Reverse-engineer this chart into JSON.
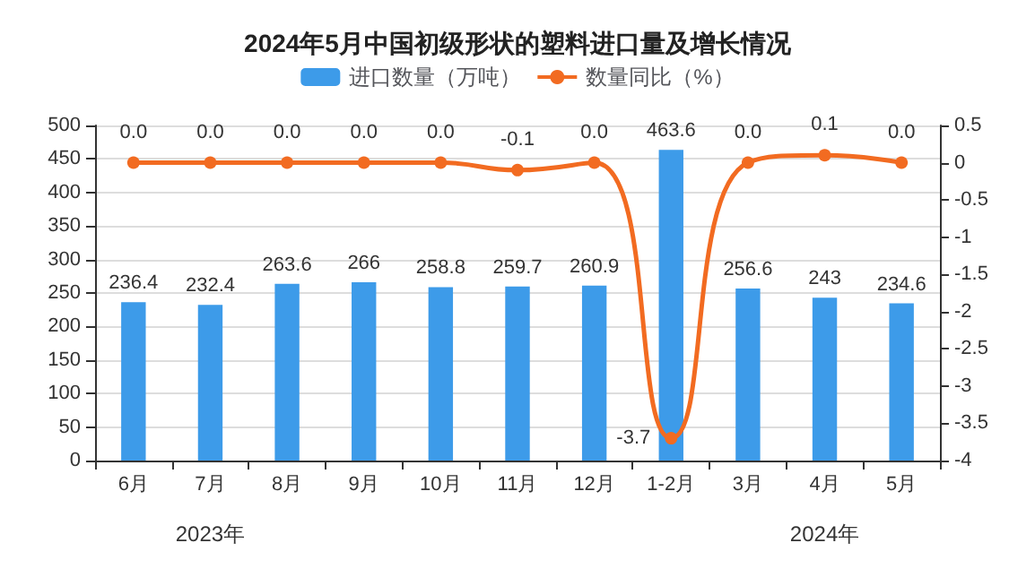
{
  "chart_data": {
    "type": "bar",
    "title": "2024年5月中国初级形状的塑料进口量及增长情况",
    "categories": [
      "6月",
      "7月",
      "8月",
      "9月",
      "10月",
      "11月",
      "12月",
      "1-2月",
      "3月",
      "4月",
      "5月"
    ],
    "series": [
      {
        "name": "进口数量（万吨）",
        "color": "#3d9be9",
        "values": [
          236.4,
          232.4,
          263.6,
          266,
          258.8,
          259.7,
          260.9,
          463.6,
          256.6,
          243,
          234.6
        ]
      },
      {
        "name": "数量同比（%）",
        "type": "line",
        "axis": "y2",
        "color": "#f26b21",
        "marker": "circle",
        "values": [
          0.0,
          0.0,
          0.0,
          0.0,
          0.0,
          -0.1,
          0.0,
          -3.7,
          0.0,
          0.1,
          0.0
        ],
        "value_labels": [
          "0.0",
          "0.0",
          "0.0",
          "0.0",
          "0.0",
          "-0.1",
          "0.0",
          "-3.7",
          "0.0",
          "0.1",
          "0.0"
        ]
      }
    ],
    "ylim": [
      0,
      500
    ],
    "yticks": [
      0,
      50,
      100,
      150,
      200,
      250,
      300,
      350,
      400,
      450,
      500
    ],
    "y2lim": [
      -4,
      0.5
    ],
    "y2ticks": [
      -4,
      -3.5,
      -3,
      -2.5,
      -2,
      -1.5,
      -1,
      -0.5,
      0,
      0.5
    ],
    "data_labels": true,
    "legend": "top",
    "grid": "y",
    "annotations": [
      "2023年",
      "2024年"
    ]
  }
}
